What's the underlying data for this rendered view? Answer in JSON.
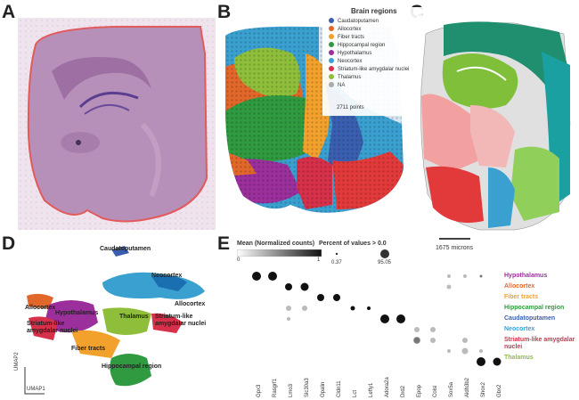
{
  "panels": {
    "a": "A",
    "b": "B",
    "c": "C",
    "d": "D",
    "e": "E"
  },
  "legend_b": {
    "title": "Brain regions",
    "items": [
      {
        "label": "Caudatoputamen",
        "color": "#3a5fb0"
      },
      {
        "label": "Allocortex",
        "color": "#e2672a"
      },
      {
        "label": "Fiber tracts",
        "color": "#f2a12c"
      },
      {
        "label": "Hippocampal region",
        "color": "#2f9a3f"
      },
      {
        "label": "Hypothalamus",
        "color": "#9b2f9b"
      },
      {
        "label": "Neocortex",
        "color": "#3aa0d0"
      },
      {
        "label": "Striatum-like amygdalar nuclei",
        "color": "#d6304a"
      },
      {
        "label": "Thalamus",
        "color": "#8fbf3a"
      },
      {
        "label": "NA",
        "color": "#aaaaaa"
      }
    ],
    "points": "2711 points"
  },
  "scale_bar": "1675 microns",
  "umap": {
    "axis_x": "UMAP1",
    "axis_y": "UMAP2",
    "labels": {
      "caudatoputamen": "Caudatoputamen",
      "neocortex": "Neocortex",
      "allocortex_left": "Allocortex",
      "allocortex_right": "Allocortex",
      "hypothalamus": "Hypothalamus",
      "thalamus": "Thalamus",
      "striatum_left": "Striatum-like\namygdalar nuclei",
      "striatum_right": "Striatum-like\namygdalar nuclei",
      "fiber": "Fiber tracts",
      "hippo": "Hippocampal region"
    }
  },
  "dotplot": {
    "color_title": "Mean (Normalized counts)",
    "color_min": "0",
    "color_max": "1",
    "size_title": "Percent of values > 0.0",
    "size_ticks": [
      "0.37",
      "95.05"
    ],
    "genes": [
      "Gpx3",
      "Rasgrf1",
      "Lmo3",
      "Slc30a3",
      "Opalin",
      "Cldn11",
      "Lct",
      "Lefty1",
      "Adora2a",
      "Drd2",
      "Epop",
      "Colsi",
      "Sox5a",
      "Aldh3b2",
      "Shox2",
      "Gbx2"
    ],
    "categories": [
      {
        "label": "Hypothalamus",
        "color": "#9b2f9b"
      },
      {
        "label": "Allocortex",
        "color": "#e2672a"
      },
      {
        "label": "Fiber tracts",
        "color": "#f2a12c"
      },
      {
        "label": "Hippocampal region",
        "color": "#2f9a3f"
      },
      {
        "label": "Caudatoputamen",
        "color": "#3a5fb0"
      },
      {
        "label": "Neocortex",
        "color": "#3aa0d0"
      },
      {
        "label": "Striatum-like amygdalar nuclei",
        "color": "#d6304a"
      },
      {
        "label": "Thalamus",
        "color": "#8fbf3a"
      }
    ]
  }
}
